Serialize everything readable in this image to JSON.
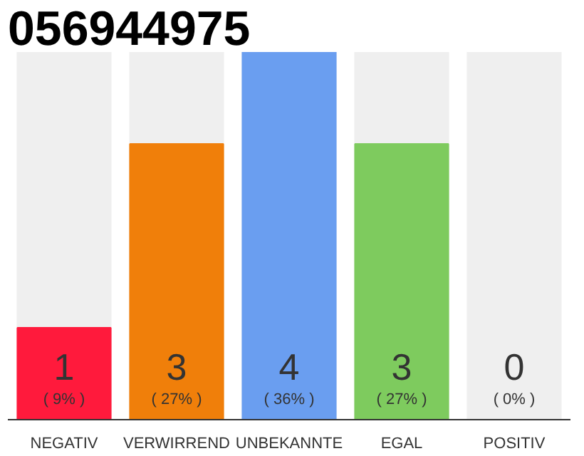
{
  "chart_data": {
    "type": "bar",
    "title": "056944975",
    "categories": [
      "NEGATIV",
      "VERWIRREND",
      "UNBEKANNTE",
      "EGAL",
      "POSITIV"
    ],
    "values": [
      1,
      3,
      4,
      3,
      0
    ],
    "colors": [
      "#ff1a3c",
      "#f07f0a",
      "#6a9ef0",
      "#7ecb5e",
      "#7ecb5e"
    ],
    "value_labels": [
      "1",
      "3",
      "4",
      "3",
      "0"
    ],
    "tick_labels": "x",
    "grid": false,
    "annotations": [
      "( 9% )",
      "( 27% )",
      "( 36% )",
      "( 27% )",
      "( 0% )"
    ]
  }
}
